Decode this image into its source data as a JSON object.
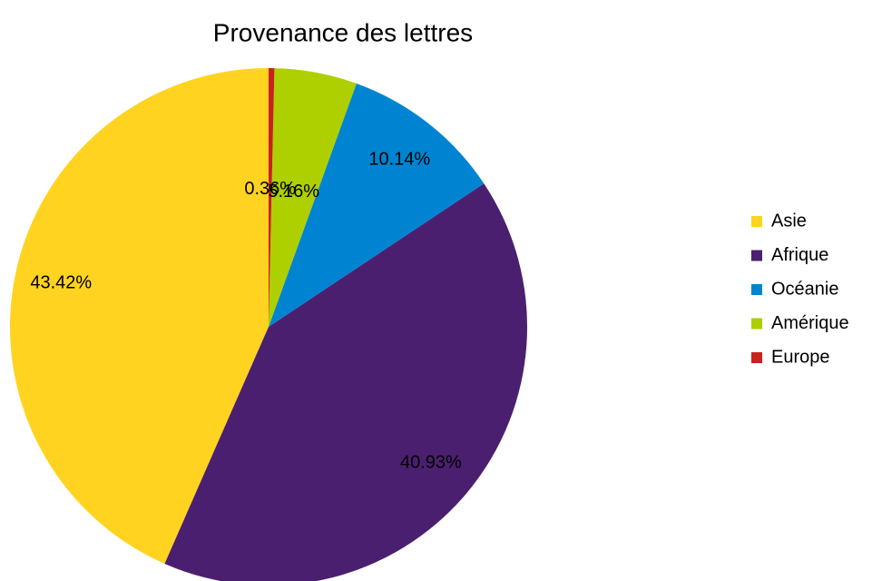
{
  "chart_data": {
    "type": "pie",
    "title": "Provenance  des lettres",
    "categories": [
      "Asie",
      "Afrique",
      "Océanie",
      "Amérique",
      "Europe"
    ],
    "values": [
      43.42,
      40.93,
      10.14,
      5.16,
      0.36
    ],
    "value_labels": [
      "43.42%",
      "40.93%",
      "10.14%",
      "5.16%",
      "0.36%"
    ],
    "colors": [
      "#ffd320",
      "#4b1f6f",
      "#0084d1",
      "#aecf00",
      "#c9211e"
    ],
    "legend": "right"
  }
}
